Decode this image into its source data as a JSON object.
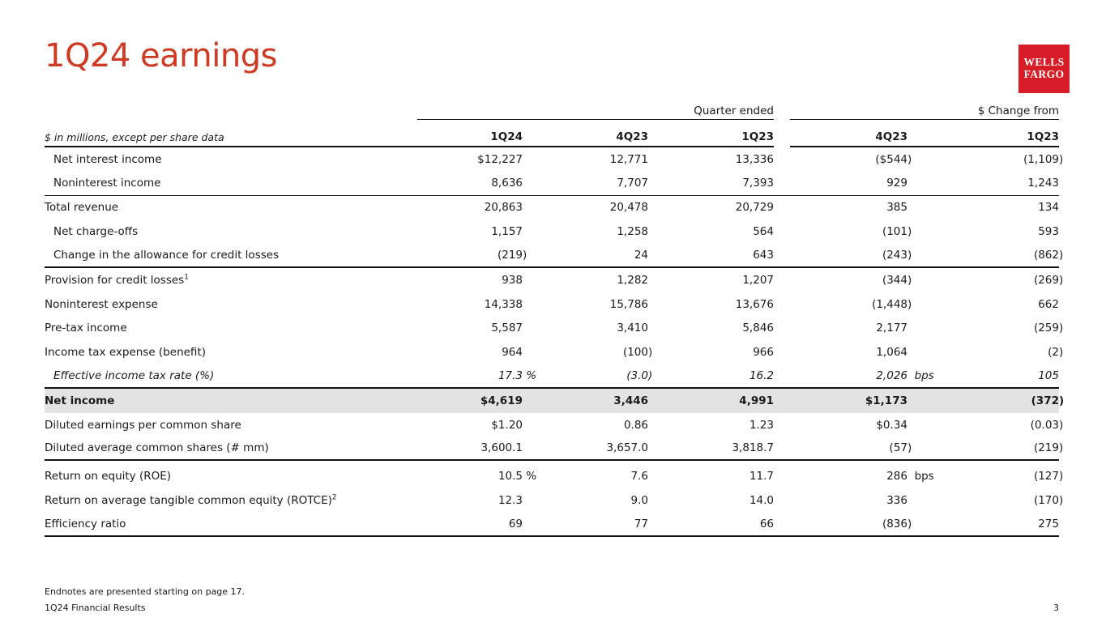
{
  "slide": {
    "title": "1Q24 earnings",
    "page_number": "3",
    "footer_note": "Endnotes are presented starting on page 17.",
    "footer_label": "1Q24 Financial Results"
  },
  "logo": {
    "line1": "WELLS",
    "line2": "FARGO"
  },
  "colors": {
    "title_red": "#cf3b22",
    "logo_red": "#d71e28",
    "highlight_gray": "#e3e3e3",
    "rule_black": "#111111"
  },
  "table": {
    "row_header_note": "$ in millions, except per share data",
    "group_headers": [
      {
        "label": "Quarter ended"
      },
      {
        "label": "$ Change from"
      }
    ],
    "columns": [
      "1Q24",
      "4Q23",
      "1Q23",
      "4Q23",
      "1Q23"
    ],
    "rows": [
      {
        "label": "Net interest income",
        "indent": true,
        "values": [
          "$12,227",
          "12,771",
          "13,336",
          "($544)",
          "(1,109)"
        ]
      },
      {
        "label": "Noninterest income",
        "indent": true,
        "border": "thin",
        "values": [
          "8,636",
          "7,707",
          "7,393",
          "929",
          "1,243"
        ]
      },
      {
        "label": "Total revenue",
        "values": [
          "20,863",
          "20,478",
          "20,729",
          "385",
          "134"
        ]
      },
      {
        "label": "Net charge-offs",
        "indent": true,
        "values": [
          "1,157",
          "1,258",
          "564",
          "(101)",
          "593"
        ]
      },
      {
        "label": "Change in the allowance for credit losses",
        "indent": true,
        "border": "thick",
        "values": [
          "(219)",
          "24",
          "643",
          "(243)",
          "(862)"
        ]
      },
      {
        "label": "Provision for credit losses",
        "sup": "1",
        "values": [
          "938",
          "1,282",
          "1,207",
          "(344)",
          "(269)"
        ]
      },
      {
        "label": "Noninterest expense",
        "values": [
          "14,338",
          "15,786",
          "13,676",
          "(1,448)",
          "662"
        ]
      },
      {
        "label": "Pre-tax income",
        "values": [
          "5,587",
          "3,410",
          "5,846",
          "2,177",
          "(259)"
        ]
      },
      {
        "label": "Income tax expense (benefit)",
        "values": [
          "964",
          "(100)",
          "966",
          "1,064",
          "(2)"
        ]
      },
      {
        "label": "Effective income tax rate (%)",
        "indent": true,
        "italic": true,
        "border": "thick",
        "values": [
          "17.3 %",
          "(3.0)",
          "16.2",
          "2,026 bps",
          "105"
        ]
      },
      {
        "label": "Net income",
        "bold": true,
        "highlight": true,
        "values": [
          "$4,619",
          "3,446",
          "4,991",
          "$1,173",
          "(372)"
        ]
      },
      {
        "label": "Diluted earnings per common share",
        "values": [
          "$1.20",
          "0.86",
          "1.23",
          "$0.34",
          "(0.03)"
        ]
      },
      {
        "label": "Diluted average common shares (# mm)",
        "border": "thick",
        "values": [
          "3,600.1",
          "3,657.0",
          "3,818.7",
          "(57)",
          "(219)"
        ]
      },
      {
        "label": "Return on equity (ROE)",
        "gap_before": true,
        "values": [
          "10.5 %",
          "7.6",
          "11.7",
          "286 bps",
          "(127)"
        ]
      },
      {
        "label": "Return on average tangible common equity (ROTCE)",
        "sup": "2",
        "values": [
          "12.3",
          "9.0",
          "14.0",
          "336",
          "(170)"
        ]
      },
      {
        "label": "Efficiency ratio",
        "border": "thick",
        "values": [
          "69",
          "77",
          "66",
          "(836)",
          "275"
        ]
      }
    ]
  }
}
